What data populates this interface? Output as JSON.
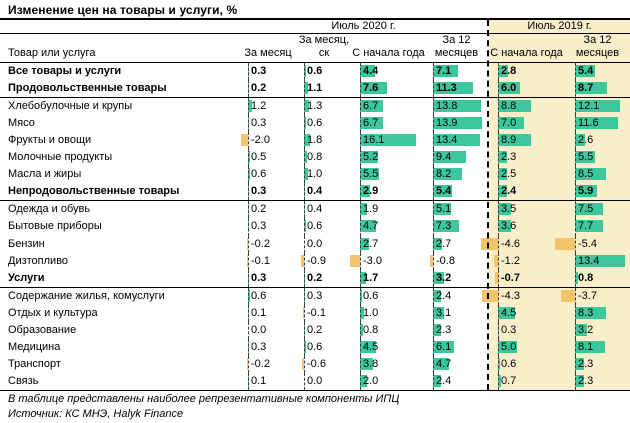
{
  "title": "Изменение цен на товары и услуги, %",
  "chart_data": {
    "type": "table",
    "title": "Изменение цен на товары и услуги, %",
    "column_groups": [
      {
        "label": "Июль 2020 г.",
        "span": 4
      },
      {
        "label": "Июль 2019 г.",
        "span": 2
      }
    ],
    "row_header": "Товар или услуга",
    "columns": [
      "За месяц",
      "За месяц, ск",
      "С начала года",
      "За 12 месяцев",
      "С начала года",
      "За 12 месяцев"
    ],
    "rows": [
      {
        "label": "Все товары и услуги",
        "bold": true,
        "separator_below": false,
        "values": [
          0.3,
          0.6,
          4.4,
          7.1,
          2.8,
          5.4
        ]
      },
      {
        "label": "Продовольственные товары",
        "bold": true,
        "separator_below": true,
        "values": [
          0.2,
          1.1,
          7.6,
          11.3,
          6.0,
          8.7
        ]
      },
      {
        "label": "Хлебобулочные и крупы",
        "bold": false,
        "separator_below": false,
        "values": [
          1.2,
          1.3,
          6.7,
          13.8,
          8.8,
          12.1
        ]
      },
      {
        "label": "Мясо",
        "bold": false,
        "separator_below": false,
        "values": [
          0.3,
          0.6,
          6.7,
          13.9,
          7.0,
          11.6
        ]
      },
      {
        "label": "Фрукты и овощи",
        "bold": false,
        "separator_below": false,
        "values": [
          -2.0,
          1.8,
          16.1,
          13.4,
          8.9,
          2.6
        ]
      },
      {
        "label": "Молочные продукты",
        "bold": false,
        "separator_below": false,
        "values": [
          0.5,
          0.8,
          5.2,
          9.4,
          2.3,
          5.5
        ]
      },
      {
        "label": "Масла и жиры",
        "bold": false,
        "separator_below": false,
        "values": [
          0.6,
          1.0,
          5.5,
          8.2,
          2.5,
          8.5
        ]
      },
      {
        "label": "Непродовольственные товары",
        "bold": true,
        "separator_below": true,
        "values": [
          0.3,
          0.4,
          2.9,
          5.4,
          2.4,
          5.9
        ]
      },
      {
        "label": "Одежда и обувь",
        "bold": false,
        "separator_below": false,
        "values": [
          0.2,
          0.4,
          1.9,
          5.1,
          3.5,
          7.5
        ]
      },
      {
        "label": "Бытовые приборы",
        "bold": false,
        "separator_below": false,
        "values": [
          0.3,
          0.6,
          4.7,
          7.3,
          3.6,
          7.7
        ]
      },
      {
        "label": "Бензин",
        "bold": false,
        "separator_below": false,
        "values": [
          -0.2,
          0.0,
          2.7,
          2.7,
          -4.6,
          -5.4
        ]
      },
      {
        "label": "Дизтопливо",
        "bold": false,
        "separator_below": false,
        "values": [
          -0.1,
          -0.9,
          -3.0,
          -0.8,
          -1.2,
          13.4
        ]
      },
      {
        "label": "Услуги",
        "bold": true,
        "separator_below": true,
        "values": [
          0.3,
          0.2,
          1.7,
          3.2,
          -0.7,
          0.8
        ]
      },
      {
        "label": "Содержание жилья, комуслуги",
        "bold": false,
        "separator_below": false,
        "values": [
          0.6,
          0.3,
          0.6,
          2.4,
          -4.3,
          -3.7
        ]
      },
      {
        "label": "Отдых и культура",
        "bold": false,
        "separator_below": false,
        "values": [
          0.1,
          -0.1,
          1.0,
          3.1,
          4.5,
          8.3
        ]
      },
      {
        "label": "Образование",
        "bold": false,
        "separator_below": false,
        "values": [
          0.0,
          0.2,
          0.8,
          2.3,
          0.3,
          3.2
        ]
      },
      {
        "label": "Медицина",
        "bold": false,
        "separator_below": false,
        "values": [
          0.3,
          0.6,
          4.5,
          6.1,
          5.0,
          8.1
        ]
      },
      {
        "label": "Транспорт",
        "bold": false,
        "separator_below": false,
        "values": [
          -0.2,
          -0.6,
          3.8,
          4.7,
          0.6,
          2.3
        ]
      },
      {
        "label": "Связь",
        "bold": false,
        "separator_below": false,
        "values": [
          0.1,
          0.0,
          2.0,
          2.4,
          0.7,
          2.3
        ]
      }
    ],
    "value_format": "one_decimal",
    "legend_note": "green bars = positive change, orange bars = negative change, dashed line = zero axis"
  },
  "footnotes": {
    "note": "В таблице представлены наиболее репрезентативные компоненты ИПЦ",
    "source": "Источник: КС МНЭ, Halyk Finance"
  },
  "colors": {
    "bar_positive": "#3EC79C",
    "bar_negative": "#F4C46A",
    "highlight_2019_bg": "#FBEECB",
    "rule": "#000000"
  }
}
